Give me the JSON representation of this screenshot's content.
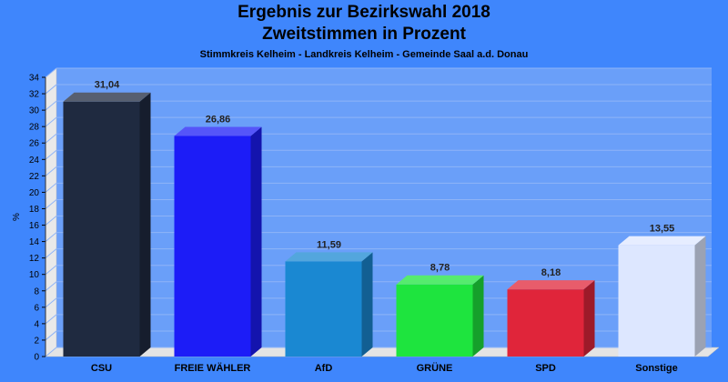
{
  "chart_data": {
    "type": "bar",
    "title": "Ergebnis zur Bezirkswahl 2018",
    "title_line2": "Zweitstimmen in Prozent",
    "subtitle": "Stimmkreis Kelheim - Landkreis Kelheim - Gemeinde Saal a.d. Donau",
    "ylabel": "%",
    "xlabel": "",
    "ylim": [
      0,
      34
    ],
    "ytick_step": 2,
    "grid": true,
    "categories": [
      "CSU",
      "FREIE WÄHLER",
      "AfD",
      "GRÜNE",
      "SPD",
      "Sonstige"
    ],
    "values": [
      31.04,
      26.86,
      11.59,
      8.78,
      8.18,
      13.55
    ],
    "value_labels": [
      "31,04",
      "26,86",
      "11,59",
      "8,78",
      "8,18",
      "13,55"
    ],
    "colors": [
      "#1f2a40",
      "#1c1cf7",
      "#1a88d2",
      "#1ee43e",
      "#e0253a",
      "#dde7ff"
    ],
    "background_color": "#3f86fc",
    "plot_color": "#6a9ff9"
  }
}
